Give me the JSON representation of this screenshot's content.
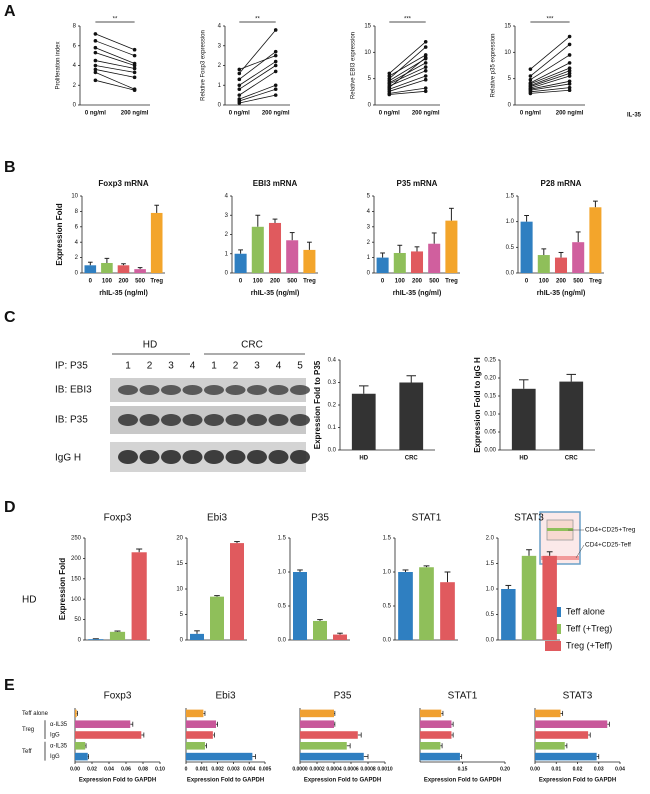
{
  "figure": {
    "panels": [
      "A",
      "B",
      "C",
      "D",
      "E"
    ],
    "blot": {
      "groups": [
        "HD",
        "CRC"
      ],
      "ip": "IP: P35",
      "lanes": [
        [
          "1",
          "2",
          "3",
          "4"
        ],
        [
          "1",
          "2",
          "3",
          "4",
          "5"
        ]
      ],
      "rows": [
        "IB: EBI3",
        "IB: P35",
        "IgG H"
      ]
    },
    "d_row": "HD",
    "schematic": [
      "CD4+CD25+Treg",
      "CD4+CD25-Teff"
    ],
    "legend": [
      {
        "name": "Teff alone",
        "color": "#2f7fc1"
      },
      {
        "name": "Teff (+Treg)",
        "color": "#8fbf5a"
      },
      {
        "name": "Treg (+Teff)",
        "color": "#e05a5e"
      }
    ],
    "e_rows": {
      "groups": [
        "Teff alone",
        "Treg",
        "Teff"
      ],
      "subs": [
        "α-IL35",
        "IgG",
        "α-IL35",
        "IgG"
      ]
    }
  },
  "chart_data": [
    {
      "type": "paired",
      "ylabel": "Proliferation index",
      "categories": [
        "0 ng/ml",
        "200 ng/ml"
      ],
      "significance": "**",
      "ylim": [
        0,
        8
      ],
      "yticks": [
        0,
        2,
        4,
        6,
        8
      ],
      "series": [
        {
          "values": [
            7.2,
            5.6
          ]
        },
        {
          "values": [
            6.5,
            5.0
          ]
        },
        {
          "values": [
            5.8,
            4.2
          ]
        },
        {
          "values": [
            5.3,
            4.0
          ]
        },
        {
          "values": [
            4.5,
            3.7
          ]
        },
        {
          "values": [
            4.0,
            3.3
          ]
        },
        {
          "values": [
            3.6,
            2.8
          ]
        },
        {
          "values": [
            3.3,
            1.6
          ]
        },
        {
          "values": [
            2.5,
            1.5
          ]
        }
      ]
    },
    {
      "type": "paired",
      "ylabel": "Relative Foxp3 expression",
      "categories": [
        "0 ng/ml",
        "200 ng/ml"
      ],
      "significance": "**",
      "ylim": [
        0,
        4
      ],
      "yticks": [
        0,
        1,
        2,
        3,
        4
      ],
      "series": [
        {
          "values": [
            1.8,
            2.5
          ]
        },
        {
          "values": [
            1.6,
            3.8
          ]
        },
        {
          "values": [
            1.3,
            2.7
          ]
        },
        {
          "values": [
            1.0,
            2.2
          ]
        },
        {
          "values": [
            0.8,
            2.0
          ]
        },
        {
          "values": [
            0.5,
            1.7
          ]
        },
        {
          "values": [
            0.3,
            1.0
          ]
        },
        {
          "values": [
            0.2,
            0.8
          ]
        },
        {
          "values": [
            0.1,
            0.5
          ]
        }
      ]
    },
    {
      "type": "paired",
      "ylabel": "Relative EBI3 expression",
      "categories": [
        "0 ng/ml",
        "200 ng/ml"
      ],
      "significance": "***",
      "ylim": [
        0,
        15
      ],
      "yticks": [
        0,
        5,
        10,
        15
      ],
      "series": [
        {
          "values": [
            6.0,
            12.0
          ]
        },
        {
          "values": [
            5.5,
            9.5
          ]
        },
        {
          "values": [
            5.0,
            11.0
          ]
        },
        {
          "values": [
            4.6,
            8.8
          ]
        },
        {
          "values": [
            4.2,
            8.0
          ]
        },
        {
          "values": [
            4.0,
            7.2
          ]
        },
        {
          "values": [
            3.6,
            6.5
          ]
        },
        {
          "values": [
            3.3,
            9.0
          ]
        },
        {
          "values": [
            3.0,
            5.5
          ]
        },
        {
          "values": [
            2.6,
            4.8
          ]
        },
        {
          "values": [
            2.2,
            3.2
          ]
        },
        {
          "values": [
            2.0,
            2.6
          ]
        }
      ]
    },
    {
      "type": "paired",
      "ylabel": "Relative p35 expression",
      "xlabel": "IL-35",
      "categories": [
        "0 ng/ml",
        "200 ng/ml"
      ],
      "significance": "***",
      "ylim": [
        0,
        15
      ],
      "yticks": [
        0,
        5,
        10,
        15
      ],
      "series": [
        {
          "values": [
            6.8,
            13.0
          ]
        },
        {
          "values": [
            5.5,
            11.5
          ]
        },
        {
          "values": [
            4.8,
            9.5
          ]
        },
        {
          "values": [
            4.2,
            8.0
          ]
        },
        {
          "values": [
            4.0,
            7.0
          ]
        },
        {
          "values": [
            3.7,
            6.5
          ]
        },
        {
          "values": [
            3.5,
            6.0
          ]
        },
        {
          "values": [
            3.2,
            5.5
          ]
        },
        {
          "values": [
            3.0,
            4.5
          ]
        },
        {
          "values": [
            2.8,
            4.0
          ]
        },
        {
          "values": [
            2.5,
            3.3
          ]
        },
        {
          "values": [
            2.2,
            2.8
          ]
        }
      ]
    },
    {
      "type": "bar",
      "title": "Foxp3 mRNA",
      "ylabel": "Expression Fold",
      "xlabel": "rhIL-35 (ng/ml)",
      "categories": [
        "0",
        "100",
        "200",
        "500",
        "Treg"
      ],
      "values": [
        1.0,
        1.3,
        1.0,
        0.5,
        7.8
      ],
      "errors": [
        0.4,
        0.6,
        0.2,
        0.2,
        1.0
      ],
      "colors": [
        "#2f7fc1",
        "#8fbf5a",
        "#e05a5e",
        "#d05f9e",
        "#f3a52b"
      ],
      "ylim": [
        0,
        10
      ],
      "yticks": [
        0,
        2,
        4,
        6,
        8,
        10
      ]
    },
    {
      "type": "bar",
      "title": "EBI3 mRNA",
      "xlabel": "rhIL-35 (ng/ml)",
      "categories": [
        "0",
        "100",
        "200",
        "500",
        "Treg"
      ],
      "values": [
        1.0,
        2.4,
        2.6,
        1.7,
        1.2
      ],
      "errors": [
        0.2,
        0.6,
        0.2,
        0.4,
        0.4
      ],
      "colors": [
        "#2f7fc1",
        "#8fbf5a",
        "#e05a5e",
        "#d05f9e",
        "#f3a52b"
      ],
      "ylim": [
        0,
        4
      ],
      "yticks": [
        0,
        1,
        2,
        3,
        4
      ]
    },
    {
      "type": "bar",
      "title": "P35 mRNA",
      "xlabel": "rhIL-35 (ng/ml)",
      "categories": [
        "0",
        "100",
        "200",
        "500",
        "Treg"
      ],
      "values": [
        1.0,
        1.3,
        1.4,
        1.9,
        3.4
      ],
      "errors": [
        0.3,
        0.5,
        0.3,
        0.7,
        0.8
      ],
      "colors": [
        "#2f7fc1",
        "#8fbf5a",
        "#e05a5e",
        "#d05f9e",
        "#f3a52b"
      ],
      "ylim": [
        0,
        5
      ],
      "yticks": [
        0,
        1,
        2,
        3,
        4,
        5
      ]
    },
    {
      "type": "bar",
      "title": "P28 mRNA",
      "xlabel": "rhIL-35 (ng/ml)",
      "categories": [
        "0",
        "100",
        "200",
        "500",
        "Treg"
      ],
      "values": [
        1.0,
        0.35,
        0.3,
        0.6,
        1.28
      ],
      "errors": [
        0.12,
        0.12,
        0.1,
        0.2,
        0.12
      ],
      "colors": [
        "#2f7fc1",
        "#8fbf5a",
        "#e05a5e",
        "#d05f9e",
        "#f3a52b"
      ],
      "ylim": [
        0,
        1.5
      ],
      "yticks": [
        {
          "value": 0,
          "label": "0.0"
        },
        0.5,
        {
          "value": 1,
          "label": "1.0"
        },
        1.5
      ]
    },
    {
      "type": "bar",
      "ylabel": "Expression Fold to P35",
      "categories": [
        "HD",
        "CRC"
      ],
      "values": [
        0.25,
        0.3
      ],
      "errors": [
        0.035,
        0.03
      ],
      "colors": [
        "#333333",
        "#333333"
      ],
      "ylim": [
        0,
        0.4
      ],
      "yticks": [
        {
          "value": 0,
          "label": "0.0"
        },
        0.1,
        0.2,
        0.3,
        0.4
      ]
    },
    {
      "type": "bar",
      "ylabel": "Expression Fold to IgG H",
      "categories": [
        "HD",
        "CRC"
      ],
      "values": [
        0.17,
        0.19
      ],
      "errors": [
        0.025,
        0.02
      ],
      "colors": [
        "#333333",
        "#333333"
      ],
      "ylim": [
        0,
        0.25
      ],
      "yticks": [
        {
          "value": 0,
          "label": "0.00"
        },
        {
          "value": 0.05,
          "label": "0.05"
        },
        {
          "value": 0.1,
          "label": "0.10"
        },
        {
          "value": 0.15,
          "label": "0.15"
        },
        {
          "value": 0.2,
          "label": "0.20"
        },
        {
          "value": 0.25,
          "label": "0.25"
        }
      ]
    },
    {
      "type": "bar",
      "title": "Foxp3",
      "ylabel": "Expression Fold",
      "values": [
        2,
        20,
        215
      ],
      "errors": [
        1,
        2,
        8
      ],
      "colors": [
        "#2f7fc1",
        "#8fbf5a",
        "#e05a5e"
      ],
      "ylim": [
        0,
        250
      ],
      "yticks": [
        0,
        50,
        100,
        150,
        200,
        250
      ]
    },
    {
      "type": "bar",
      "title": "Ebi3",
      "values": [
        1.2,
        8.5,
        19
      ],
      "errors": [
        0.6,
        0.2,
        0.3
      ],
      "colors": [
        "#2f7fc1",
        "#8fbf5a",
        "#e05a5e"
      ],
      "ylim": [
        0,
        20
      ],
      "yticks": [
        0,
        5,
        10,
        15,
        20
      ]
    },
    {
      "type": "bar",
      "title": "P35",
      "values": [
        1.0,
        0.28,
        0.08
      ],
      "errors": [
        0.03,
        0.02,
        0.02
      ],
      "colors": [
        "#2f7fc1",
        "#8fbf5a",
        "#e05a5e"
      ],
      "ylim": [
        0,
        1.5
      ],
      "yticks": [
        {
          "value": 0,
          "label": "0.0"
        },
        0.5,
        {
          "value": 1,
          "label": "1.0"
        },
        1.5
      ]
    },
    {
      "type": "bar",
      "title": "STAT1",
      "values": [
        1.0,
        1.07,
        0.85
      ],
      "errors": [
        0.03,
        0.02,
        0.15
      ],
      "colors": [
        "#2f7fc1",
        "#8fbf5a",
        "#e05a5e"
      ],
      "ylim": [
        0,
        1.5
      ],
      "yticks": [
        {
          "value": 0,
          "label": "0.0"
        },
        0.5,
        {
          "value": 1,
          "label": "1.0"
        },
        1.5
      ]
    },
    {
      "type": "bar",
      "title": "STAT3",
      "values": [
        1.0,
        1.65,
        1.65
      ],
      "errors": [
        0.07,
        0.12,
        0.08
      ],
      "colors": [
        "#2f7fc1",
        "#8fbf5a",
        "#e05a5e"
      ],
      "ylim": [
        0,
        2
      ],
      "yticks": [
        {
          "value": 0,
          "label": "0.0"
        },
        0.5,
        {
          "value": 1,
          "label": "1.0"
        },
        1.5,
        {
          "value": 2,
          "label": "2.0"
        }
      ]
    },
    {
      "type": "barh",
      "title": "Foxp3",
      "xlabel": "Expression Fold to GAPDH",
      "values": [
        0.002,
        0.065,
        0.078,
        0.012,
        0.015
      ],
      "errors": [
        0.001,
        0.003,
        0.003,
        0.001,
        0.001
      ],
      "colors": [
        "#f0a030",
        "#c8579a",
        "#e05a5e",
        "#8fbf5a",
        "#2f7fc1"
      ],
      "xlim": [
        0,
        0.1
      ],
      "xticks": [
        {
          "value": 0,
          "label": "0.00"
        },
        0.02,
        0.04,
        0.06,
        0.08,
        {
          "value": 0.1,
          "label": "0.10"
        }
      ]
    },
    {
      "type": "barh",
      "title": "Ebi3",
      "xlabel": "Expression Fold to GAPDH",
      "values": [
        0.0011,
        0.0019,
        0.0017,
        0.0012,
        0.0042
      ],
      "errors": [
        0.0001,
        0.0001,
        0.0001,
        0.0001,
        0.0002
      ],
      "colors": [
        "#f0a030",
        "#c8579a",
        "#e05a5e",
        "#8fbf5a",
        "#2f7fc1"
      ],
      "xlim": [
        0,
        0.005
      ],
      "xticks": [
        0,
        0.001,
        0.002,
        0.003,
        0.004,
        0.005
      ]
    },
    {
      "type": "barh",
      "title": "P35",
      "xlabel": "Expression Fold to GAPDH",
      "values": [
        0.0004,
        0.0004,
        0.00068,
        0.00055,
        0.00075
      ],
      "errors": [
        1e-05,
        1e-05,
        4e-05,
        4e-05,
        5e-05
      ],
      "colors": [
        "#f0a030",
        "#c8579a",
        "#e05a5e",
        "#8fbf5a",
        "#2f7fc1"
      ],
      "xlim": [
        0,
        0.001
      ],
      "xticks": [
        {
          "value": 0,
          "label": "0.0000"
        },
        0.0002,
        0.0004,
        0.0006,
        0.0008,
        {
          "value": 0.001,
          "label": "0.0010"
        }
      ]
    },
    {
      "type": "barh",
      "title": "STAT1",
      "xlabel": "Expression Fold to GAPDH",
      "values": [
        0.125,
        0.137,
        0.137,
        0.124,
        0.147
      ],
      "errors": [
        0.002,
        0.002,
        0.002,
        0.002,
        0.002
      ],
      "colors": [
        "#f0a030",
        "#c8579a",
        "#e05a5e",
        "#8fbf5a",
        "#2f7fc1"
      ],
      "xlim": [
        0.1,
        0.2
      ],
      "xticks": [
        0.15,
        {
          "value": 0.2,
          "label": "0.20"
        }
      ]
    },
    {
      "type": "barh",
      "title": "STAT3",
      "xlabel": "Expression Fold to GAPDH",
      "values": [
        0.012,
        0.034,
        0.025,
        0.014,
        0.029
      ],
      "errors": [
        0.001,
        0.001,
        0.001,
        0.001,
        0.001
      ],
      "colors": [
        "#f0a030",
        "#c8579a",
        "#e05a5e",
        "#8fbf5a",
        "#2f7fc1"
      ],
      "xlim": [
        0,
        0.04
      ],
      "xticks": [
        {
          "value": 0,
          "label": "0.00"
        },
        0.01,
        0.02,
        0.03,
        0.04
      ]
    }
  ]
}
